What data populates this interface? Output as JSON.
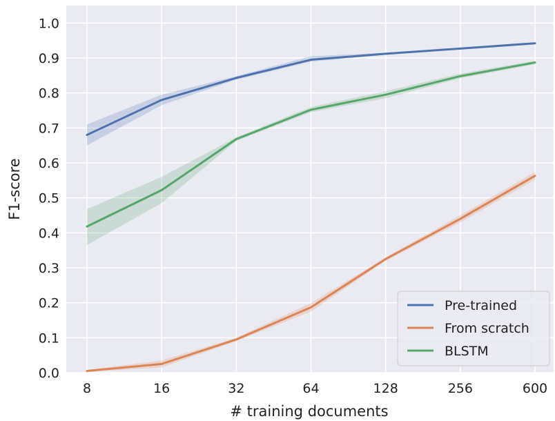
{
  "chart_data": {
    "type": "line",
    "title": "",
    "xlabel": "# training documents",
    "ylabel": "F1-score",
    "x_scale": "log2",
    "x": [
      8,
      16,
      32,
      64,
      128,
      256,
      600
    ],
    "x_tick_labels": [
      "8",
      "16",
      "32",
      "64",
      "128",
      "256",
      "600"
    ],
    "ylim": [
      0.0,
      1.05
    ],
    "y_ticks": [
      0.0,
      0.1,
      0.2,
      0.3,
      0.4,
      0.5,
      0.6,
      0.7,
      0.8,
      0.9,
      1.0
    ],
    "y_tick_labels": [
      "0.0",
      "0.1",
      "0.2",
      "0.3",
      "0.4",
      "0.5",
      "0.6",
      "0.7",
      "0.8",
      "0.9",
      "1.0"
    ],
    "grid": true,
    "background": "#eaeaf2",
    "legend_position": "bottom-right",
    "series": [
      {
        "name": "Pre-trained",
        "color": "#4c72b0",
        "values": [
          0.68,
          0.78,
          0.843,
          0.895,
          0.912,
          0.927,
          0.942
        ],
        "lower": [
          0.65,
          0.765,
          0.838,
          0.89,
          0.909,
          0.925,
          0.94
        ],
        "upper": [
          0.71,
          0.795,
          0.848,
          0.905,
          0.915,
          0.929,
          0.944
        ]
      },
      {
        "name": "From scratch",
        "color": "#dd8452",
        "values": [
          0.005,
          0.025,
          0.095,
          0.187,
          0.325,
          0.44,
          0.563
        ],
        "lower": [
          0.002,
          0.015,
          0.09,
          0.175,
          0.32,
          0.43,
          0.552
        ],
        "upper": [
          0.008,
          0.035,
          0.1,
          0.199,
          0.33,
          0.45,
          0.574
        ]
      },
      {
        "name": "BLSTM",
        "color": "#55a868",
        "values": [
          0.418,
          0.522,
          0.668,
          0.752,
          0.795,
          0.848,
          0.887
        ],
        "lower": [
          0.365,
          0.485,
          0.663,
          0.745,
          0.785,
          0.842,
          0.882
        ],
        "upper": [
          0.468,
          0.56,
          0.673,
          0.76,
          0.805,
          0.855,
          0.892
        ]
      }
    ]
  }
}
